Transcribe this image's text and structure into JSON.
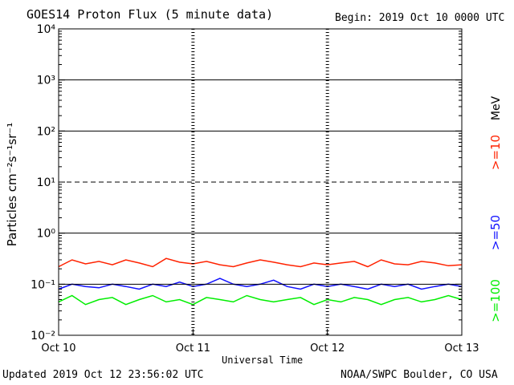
{
  "header": {
    "title": "GOES14 Proton Flux (5 minute data)",
    "begin": "Begin: 2019 Oct 10 0000 UTC"
  },
  "footer": {
    "updated": "Updated 2019 Oct 12 23:56:02 UTC",
    "credit": "NOAA/SWPC Boulder, CO USA"
  },
  "chart_data": {
    "type": "line",
    "title": "GOES14 Proton Flux (5 minute data)",
    "xlabel": "Universal Time",
    "ylabel": "Particles cm⁻²s⁻¹sr⁻¹",
    "yscale": "log",
    "ylim": [
      0.01,
      10000
    ],
    "y_ticks": [
      {
        "value": 0.01,
        "label": "10⁻²"
      },
      {
        "value": 0.1,
        "label": "10⁻¹"
      },
      {
        "value": 1,
        "label": "10⁰"
      },
      {
        "value": 10,
        "label": "10¹"
      },
      {
        "value": 100,
        "label": "10²"
      },
      {
        "value": 1000,
        "label": "10³"
      },
      {
        "value": 10000,
        "label": "10⁴"
      }
    ],
    "threshold_lines": [
      {
        "value": 10,
        "style": "dashed"
      },
      {
        "value": 1000,
        "style": "solid"
      },
      {
        "value": 100,
        "style": "solid"
      },
      {
        "value": 1,
        "style": "solid"
      },
      {
        "value": 0.1,
        "style": "solid"
      }
    ],
    "x_ticks": [
      "Oct 10",
      "Oct 11",
      "Oct 12",
      "Oct 13"
    ],
    "x_range_days": [
      0,
      3
    ],
    "legend_unit": "MeV",
    "legend_placement": "right",
    "series": [
      {
        "name": ">=10",
        "color": "#ff2200",
        "x": [
          0,
          0.1,
          0.2,
          0.3,
          0.4,
          0.5,
          0.6,
          0.7,
          0.8,
          0.9,
          1.0,
          1.1,
          1.2,
          1.3,
          1.4,
          1.5,
          1.6,
          1.7,
          1.8,
          1.9,
          2.0,
          2.1,
          2.2,
          2.3,
          2.4,
          2.5,
          2.6,
          2.7,
          2.8,
          2.9,
          3.0
        ],
        "values": [
          0.22,
          0.3,
          0.25,
          0.28,
          0.24,
          0.3,
          0.26,
          0.22,
          0.32,
          0.27,
          0.25,
          0.28,
          0.24,
          0.22,
          0.26,
          0.3,
          0.27,
          0.24,
          0.22,
          0.26,
          0.24,
          0.26,
          0.28,
          0.22,
          0.3,
          0.25,
          0.24,
          0.28,
          0.26,
          0.23,
          0.24
        ]
      },
      {
        "name": ">=50",
        "color": "#1010ff",
        "x": [
          0,
          0.1,
          0.2,
          0.3,
          0.4,
          0.5,
          0.6,
          0.7,
          0.8,
          0.9,
          1.0,
          1.1,
          1.2,
          1.3,
          1.4,
          1.5,
          1.6,
          1.7,
          1.8,
          1.9,
          2.0,
          2.1,
          2.2,
          2.3,
          2.4,
          2.5,
          2.6,
          2.7,
          2.8,
          2.9,
          3.0
        ],
        "values": [
          0.08,
          0.1,
          0.09,
          0.085,
          0.1,
          0.09,
          0.08,
          0.1,
          0.09,
          0.11,
          0.09,
          0.1,
          0.13,
          0.1,
          0.09,
          0.1,
          0.12,
          0.09,
          0.08,
          0.1,
          0.09,
          0.1,
          0.09,
          0.08,
          0.1,
          0.09,
          0.1,
          0.08,
          0.09,
          0.1,
          0.09
        ]
      },
      {
        "name": ">=100",
        "color": "#00ee00",
        "x": [
          0,
          0.1,
          0.2,
          0.3,
          0.4,
          0.5,
          0.6,
          0.7,
          0.8,
          0.9,
          1.0,
          1.1,
          1.2,
          1.3,
          1.4,
          1.5,
          1.6,
          1.7,
          1.8,
          1.9,
          2.0,
          2.1,
          2.2,
          2.3,
          2.4,
          2.5,
          2.6,
          2.7,
          2.8,
          2.9,
          3.0
        ],
        "values": [
          0.045,
          0.06,
          0.04,
          0.05,
          0.055,
          0.04,
          0.05,
          0.06,
          0.045,
          0.05,
          0.04,
          0.055,
          0.05,
          0.045,
          0.06,
          0.05,
          0.045,
          0.05,
          0.055,
          0.04,
          0.05,
          0.045,
          0.055,
          0.05,
          0.04,
          0.05,
          0.055,
          0.045,
          0.05,
          0.06,
          0.05
        ]
      }
    ]
  }
}
